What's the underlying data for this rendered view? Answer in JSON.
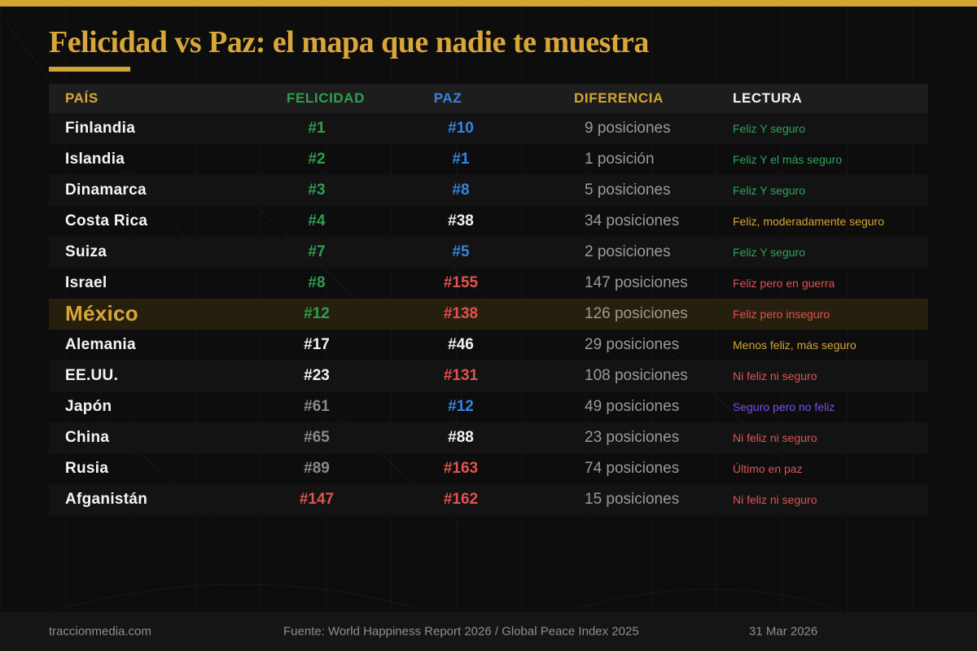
{
  "page": {
    "title": "Felicidad vs Paz: el mapa que nadie te muestra",
    "accent_color": "#d2a433",
    "background_color": "#0d0d0d"
  },
  "palette": {
    "green": "#2e9e50",
    "blue": "#3584e4",
    "red": "#e05252",
    "white": "#f2f2f2",
    "gray": "#8a8a8a",
    "gold": "#d6a433",
    "purple": "#7b4fe9",
    "lectura_green": "#2fa45c",
    "country_white": "#f5f5f5",
    "diff_gray": "#9a9a9a"
  },
  "chart_data": {
    "type": "table",
    "title": "Felicidad vs Paz: el mapa que nadie te muestra",
    "columns": [
      {
        "key": "pais",
        "label": "PAÍS",
        "color_key": "gold"
      },
      {
        "key": "felicidad",
        "label": "FELICIDAD",
        "color_key": "green"
      },
      {
        "key": "paz",
        "label": "PAZ",
        "color_key": "blue"
      },
      {
        "key": "diferencia",
        "label": "DIFERENCIA",
        "color_key": "gold"
      },
      {
        "key": "lectura",
        "label": "LECTURA",
        "color_key": "white"
      }
    ],
    "rows": [
      {
        "pais": "Finlandia",
        "felicidad": "#1",
        "felicidad_color": "green",
        "paz": "#10",
        "paz_color": "blue",
        "diferencia": "9 posiciones",
        "lectura": "Feliz Y seguro",
        "lectura_color": "lectura_green",
        "highlight": false
      },
      {
        "pais": "Islandia",
        "felicidad": "#2",
        "felicidad_color": "green",
        "paz": "#1",
        "paz_color": "blue",
        "diferencia": "1 posición",
        "lectura": "Feliz Y el más seguro",
        "lectura_color": "lectura_green",
        "highlight": false
      },
      {
        "pais": "Dinamarca",
        "felicidad": "#3",
        "felicidad_color": "green",
        "paz": "#8",
        "paz_color": "blue",
        "diferencia": "5 posiciones",
        "lectura": "Feliz Y seguro",
        "lectura_color": "lectura_green",
        "highlight": false
      },
      {
        "pais": "Costa Rica",
        "felicidad": "#4",
        "felicidad_color": "green",
        "paz": "#38",
        "paz_color": "white",
        "diferencia": "34 posiciones",
        "lectura": "Feliz, moderadamente seguro",
        "lectura_color": "gold",
        "highlight": false
      },
      {
        "pais": "Suiza",
        "felicidad": "#7",
        "felicidad_color": "green",
        "paz": "#5",
        "paz_color": "blue",
        "diferencia": "2 posiciones",
        "lectura": "Feliz Y seguro",
        "lectura_color": "lectura_green",
        "highlight": false
      },
      {
        "pais": "Israel",
        "felicidad": "#8",
        "felicidad_color": "green",
        "paz": "#155",
        "paz_color": "red",
        "diferencia": "147 posiciones",
        "lectura": "Feliz pero en guerra",
        "lectura_color": "red",
        "highlight": false
      },
      {
        "pais": "México",
        "felicidad": "#12",
        "felicidad_color": "green",
        "paz": "#138",
        "paz_color": "red",
        "diferencia": "126 posiciones",
        "lectura": "Feliz pero inseguro",
        "lectura_color": "red",
        "highlight": true
      },
      {
        "pais": "Alemania",
        "felicidad": "#17",
        "felicidad_color": "white",
        "paz": "#46",
        "paz_color": "white",
        "diferencia": "29 posiciones",
        "lectura": "Menos feliz, más seguro",
        "lectura_color": "gold",
        "highlight": false
      },
      {
        "pais": "EE.UU.",
        "felicidad": "#23",
        "felicidad_color": "white",
        "paz": "#131",
        "paz_color": "red",
        "diferencia": "108 posiciones",
        "lectura": "Ni feliz ni seguro",
        "lectura_color": "red",
        "highlight": false
      },
      {
        "pais": "Japón",
        "felicidad": "#61",
        "felicidad_color": "gray",
        "paz": "#12",
        "paz_color": "blue",
        "diferencia": "49 posiciones",
        "lectura": "Seguro pero no feliz",
        "lectura_color": "purple",
        "highlight": false
      },
      {
        "pais": "China",
        "felicidad": "#65",
        "felicidad_color": "gray",
        "paz": "#88",
        "paz_color": "white",
        "diferencia": "23 posiciones",
        "lectura": "Ni feliz ni seguro",
        "lectura_color": "red",
        "highlight": false
      },
      {
        "pais": "Rusia",
        "felicidad": "#89",
        "felicidad_color": "gray",
        "paz": "#163",
        "paz_color": "red",
        "diferencia": "74 posiciones",
        "lectura": "Último en paz",
        "lectura_color": "red",
        "highlight": false
      },
      {
        "pais": "Afganistán",
        "felicidad": "#147",
        "felicidad_color": "red",
        "paz": "#162",
        "paz_color": "red",
        "diferencia": "15 posiciones",
        "lectura": "Ni feliz ni seguro",
        "lectura_color": "red",
        "highlight": false
      }
    ]
  },
  "footer": {
    "site": "traccionmedia.com",
    "source": "Fuente: World Happiness Report 2026 / Global Peace Index 2025",
    "date": "31 Mar 2026"
  }
}
